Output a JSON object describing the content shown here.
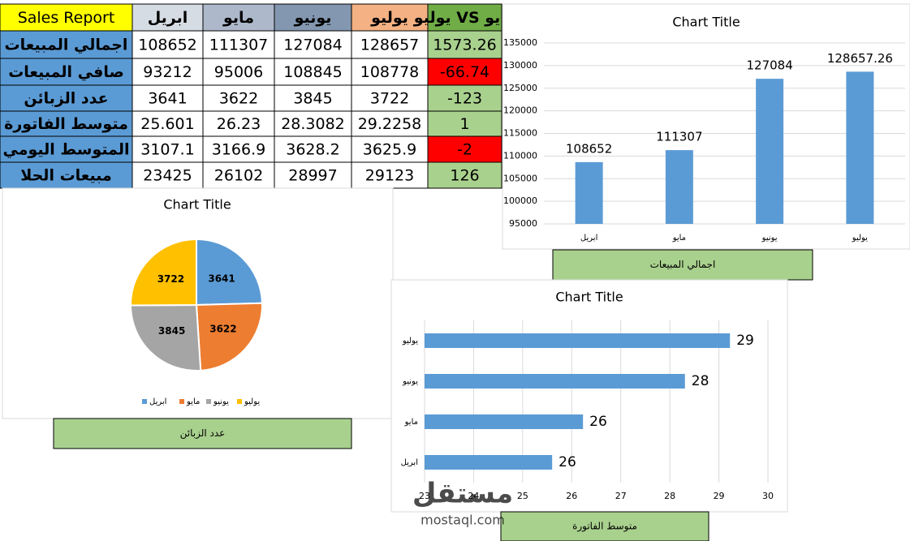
{
  "table": {
    "header": [
      "Sales Report",
      "ابريل",
      "مايو",
      "يونيو",
      "يوليو",
      "يوليو VS مايو"
    ],
    "header_colors": [
      "#ffff00",
      "#d6dce4",
      "#adb9ca",
      "#8497b0",
      "#f4b183",
      "#70ad47"
    ],
    "label_color": "#5b9bd5",
    "rows": [
      {
        "label": "اجمالي المبيعات",
        "values": [
          108652,
          111307,
          127084,
          128657
        ],
        "change": 1573.26,
        "change_color": "#a9d18e"
      },
      {
        "label": "صافي المبيعات",
        "values": [
          93212,
          95006,
          108845,
          108778
        ],
        "change": -66.74,
        "change_color": "#ff0000"
      },
      {
        "label": "عدد الزبائن",
        "values": [
          3641,
          3622,
          3845,
          3722
        ],
        "change": -123,
        "change_color": "#a9d18e"
      },
      {
        "label": "متوسط الفاتورة",
        "values": [
          25.601,
          26.23,
          28.3082,
          29.2258
        ],
        "change": 1,
        "change_color": "#a9d18e"
      },
      {
        "label": "المتوسط اليومي",
        "values": [
          3107.1,
          3166.9,
          3628.2,
          3625.9
        ],
        "change": -2,
        "change_color": "#ff0000"
      },
      {
        "label": "مبيعات الحلا",
        "values": [
          23425,
          26102,
          28997,
          29123
        ],
        "change": 126,
        "change_color": "#a9d18e"
      }
    ]
  },
  "chart_data": [
    {
      "type": "bar",
      "title": "Chart Title",
      "caption": "اجمالي المبيعات",
      "categories": [
        "ابريل",
        "مايو",
        "يونيو",
        "يوليو"
      ],
      "values": [
        108652,
        111307,
        127084,
        128657.26
      ],
      "color": "#5b9bd5",
      "ylim": [
        95000,
        135000
      ],
      "yticks": [
        95000,
        100000,
        105000,
        110000,
        115000,
        120000,
        125000,
        130000,
        135000
      ],
      "grid": true
    },
    {
      "type": "pie",
      "title": "Chart Title",
      "caption": "عدد الزبائن",
      "categories": [
        "ابريل",
        "مايو",
        "يونيو",
        "يوليو"
      ],
      "values": [
        3641,
        3622,
        3845,
        3722
      ],
      "colors": [
        "#5b9bd5",
        "#ed7d31",
        "#a5a5a5",
        "#ffc000"
      ],
      "legend": "bottom"
    },
    {
      "type": "bar",
      "orientation": "horizontal",
      "title": "Chart Title",
      "caption": "متوسط الفاتورة",
      "categories": [
        "ابريل",
        "مايو",
        "يونيو",
        "يوليو"
      ],
      "values": [
        25.601,
        26.23,
        28.3082,
        29.2258
      ],
      "value_labels": [
        "26",
        "26",
        "28",
        "29"
      ],
      "color": "#5b9bd5",
      "xlim": [
        23,
        30
      ],
      "xticks": [
        23,
        24,
        25,
        26,
        27,
        28,
        29,
        30
      ],
      "grid": true
    }
  ],
  "watermark": [
    "مستقل",
    "mostaql.com"
  ]
}
